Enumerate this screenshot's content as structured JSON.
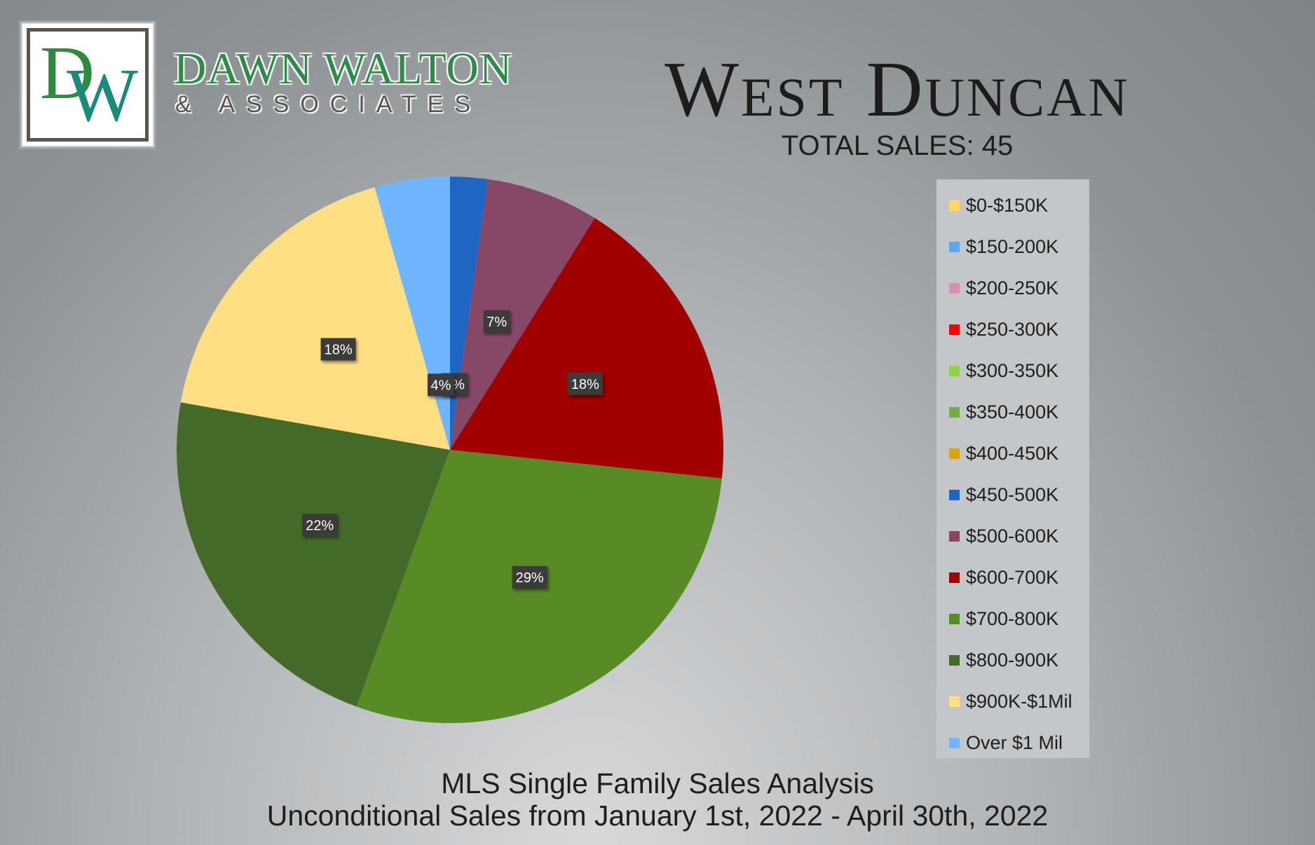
{
  "brand": {
    "monogram_d": "D",
    "monogram_w": "W",
    "name": "DAWN WALTON",
    "sub": "& ASSOCIATES"
  },
  "header": {
    "title": "West Duncan",
    "subtitle": "TOTAL SALES: 45"
  },
  "footer": {
    "line1": "MLS Single Family Sales Analysis",
    "line2": "Unconditional Sales from January 1st, 2022 - April 30th, 2022"
  },
  "chart_data": {
    "type": "pie",
    "legend_position": "right",
    "categories": [
      "$0-$150K",
      "$150-200K",
      "$200-250K",
      "$250-300K",
      "$300-350K",
      "$350-400K",
      "$400-450K",
      "$450-500K",
      "$500-600K",
      "$600-700K",
      "$700-800K",
      "$800-900K",
      "$900K-$1Mil",
      "Over $1 Mil"
    ],
    "values": [
      0,
      0,
      0,
      0,
      0,
      0,
      0,
      1,
      3,
      8,
      13,
      10,
      8,
      2
    ],
    "labels": [
      "",
      "",
      "",
      "",
      "",
      "",
      "",
      "2%",
      "7%",
      "18%",
      "29%",
      "22%",
      "18%",
      "4%"
    ],
    "colors": [
      "#ffd966",
      "#5aa7f2",
      "#d68fb0",
      "#ff0000",
      "#8fd14f",
      "#70ad47",
      "#d9a315",
      "#1f66c2",
      "#874868",
      "#a00000",
      "#588a25",
      "#446a2a",
      "#ffdf84",
      "#6fb5ff"
    ]
  }
}
